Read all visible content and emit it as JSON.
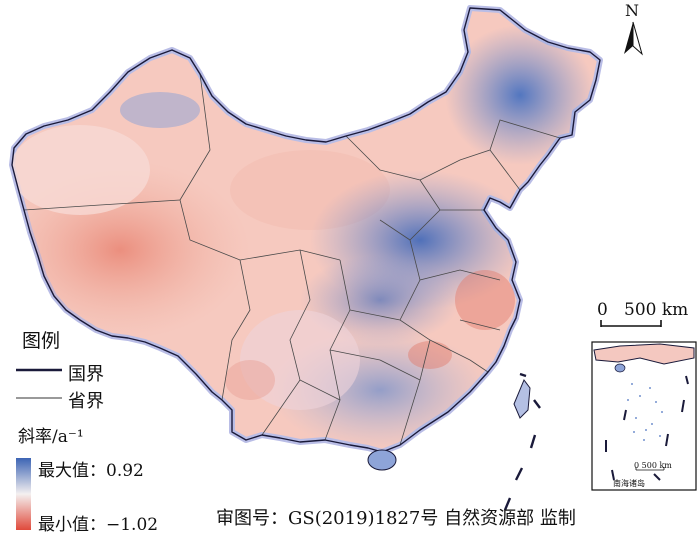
{
  "legend": {
    "title": "图例",
    "national_border": "国界",
    "provincial_border": "省界",
    "slope_title": "斜率/a⁻¹",
    "max_label": "最大值：0.92",
    "min_label": "最小值：−1.02",
    "color_max": "#3c64b4",
    "color_mid": "#f4f0f0",
    "color_min": "#e04a3c"
  },
  "map": {
    "scale_zero": "0",
    "scale_value": "500 km",
    "north_label": "N",
    "approval": "审图号：GS(2019)1827号  自然资源部  监制",
    "inset_scale": "0    500 km",
    "inset_title": "南海诸岛"
  }
}
